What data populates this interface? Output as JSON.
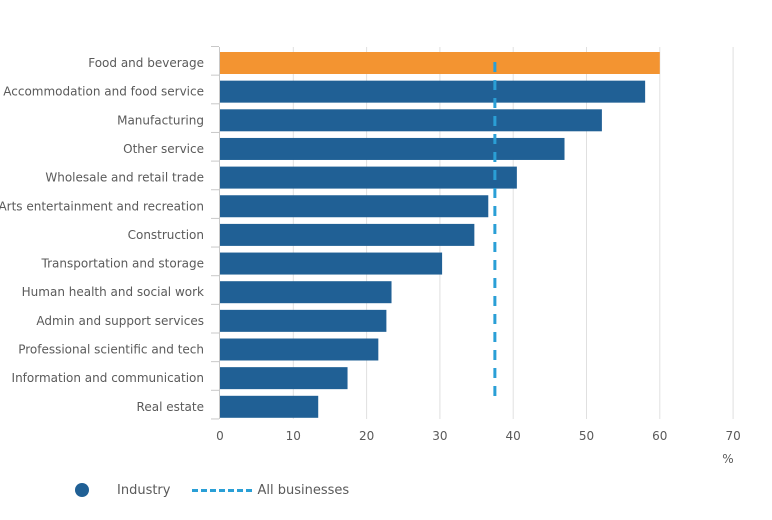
{
  "chart_data": {
    "type": "bar",
    "orientation": "horizontal",
    "categories": [
      "Food and beverage",
      "Accommodation and food service",
      "Manufacturing",
      "Other service",
      "Wholesale and retail trade",
      "Arts entertainment and recreation",
      "Construction",
      "Transportation and storage",
      "Human health and social work",
      "Admin and support services",
      "Professional scientific and tech",
      "Information and communication",
      "Real estate"
    ],
    "series": [
      {
        "name": "Industry",
        "values": [
          60,
          58,
          52.1,
          47,
          40.5,
          36.6,
          34.7,
          30.3,
          23.4,
          22.7,
          21.6,
          17.4,
          13.4
        ],
        "color": "#206095",
        "highlight_index": 0,
        "highlight_color": "#F39431"
      }
    ],
    "reference_line": {
      "name": "All businesses",
      "value": 37.5,
      "color": "#2a9fd6",
      "style": "dashed"
    },
    "x_ticks": [
      "0",
      "10",
      "20",
      "30",
      "40",
      "50",
      "60",
      "70"
    ],
    "xlim": [
      0,
      70
    ],
    "xlabel": "%",
    "grid": "vertical",
    "legend_position": "bottom-left"
  },
  "legend": {
    "industry_label": "Industry",
    "all_businesses_label": "All businesses"
  }
}
